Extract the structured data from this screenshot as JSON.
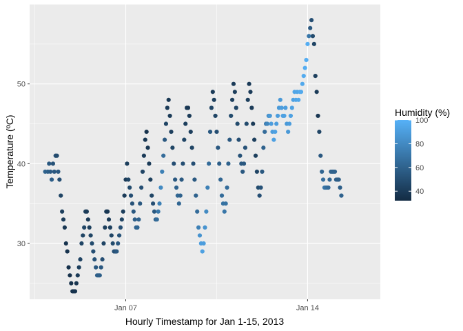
{
  "chart_data": {
    "type": "scatter",
    "title": "",
    "xlabel": "Hourly Timestamp for Jan 1-15, 2013",
    "ylabel": "Temperature (ºC)",
    "x_ticks": [
      {
        "day": 7,
        "label": "Jan 07"
      },
      {
        "day": 14,
        "label": "Jan 14"
      }
    ],
    "y_ticks": [
      30,
      40,
      50
    ],
    "xlim_days": [
      3.3,
      16.8
    ],
    "ylim": [
      23,
      60
    ],
    "grid": true,
    "legend": {
      "title": "Humidity (%)",
      "position": "right",
      "ticks": [
        40,
        60,
        80,
        100
      ],
      "range": [
        32,
        100
      ],
      "color_low": "#132B43",
      "color_high": "#56B1F7"
    },
    "colors": {
      "panel_bg": "#EBEBEB",
      "grid_major": "#FFFFFF"
    },
    "points_day_temp_humidity": [
      [
        3.9,
        39,
        60
      ],
      [
        4.0,
        39,
        58
      ],
      [
        4.05,
        40,
        55
      ],
      [
        4.1,
        39,
        56
      ],
      [
        4.15,
        38,
        58
      ],
      [
        4.2,
        40,
        52
      ],
      [
        4.25,
        39,
        55
      ],
      [
        4.3,
        41,
        50
      ],
      [
        4.35,
        41,
        48
      ],
      [
        4.4,
        39,
        55
      ],
      [
        4.45,
        38,
        50
      ],
      [
        4.5,
        36,
        45
      ],
      [
        4.55,
        34,
        42
      ],
      [
        4.6,
        33,
        40
      ],
      [
        4.65,
        32,
        38
      ],
      [
        4.7,
        30,
        36
      ],
      [
        4.75,
        29,
        36
      ],
      [
        4.8,
        27,
        35
      ],
      [
        4.85,
        26,
        35
      ],
      [
        4.9,
        25,
        35
      ],
      [
        4.95,
        24,
        35
      ],
      [
        5.0,
        24,
        36
      ],
      [
        5.05,
        24,
        36
      ],
      [
        5.1,
        25,
        37
      ],
      [
        5.15,
        26,
        40
      ],
      [
        5.2,
        27,
        42
      ],
      [
        5.25,
        28,
        44
      ],
      [
        5.3,
        30,
        45
      ],
      [
        5.35,
        31,
        45
      ],
      [
        5.4,
        32,
        45
      ],
      [
        5.45,
        34,
        42
      ],
      [
        5.5,
        34,
        40
      ],
      [
        5.55,
        33,
        40
      ],
      [
        5.6,
        32,
        42
      ],
      [
        5.65,
        31,
        45
      ],
      [
        5.7,
        30,
        48
      ],
      [
        5.75,
        29,
        50
      ],
      [
        5.8,
        28,
        52
      ],
      [
        5.85,
        27,
        55
      ],
      [
        5.9,
        26,
        58
      ],
      [
        5.95,
        26,
        58
      ],
      [
        6.0,
        26,
        58
      ],
      [
        6.05,
        27,
        55
      ],
      [
        6.1,
        28,
        50
      ],
      [
        6.15,
        30,
        45
      ],
      [
        6.2,
        32,
        42
      ],
      [
        6.25,
        34,
        40
      ],
      [
        6.3,
        34,
        38
      ],
      [
        6.35,
        33,
        40
      ],
      [
        6.4,
        32,
        42
      ],
      [
        6.45,
        31,
        45
      ],
      [
        6.5,
        30,
        48
      ],
      [
        6.55,
        29,
        50
      ],
      [
        6.6,
        29,
        52
      ],
      [
        6.65,
        29,
        55
      ],
      [
        6.7,
        30,
        55
      ],
      [
        6.75,
        31,
        52
      ],
      [
        6.8,
        32,
        50
      ],
      [
        6.85,
        33,
        45
      ],
      [
        6.9,
        34,
        42
      ],
      [
        6.95,
        36,
        40
      ],
      [
        7.0,
        38,
        40
      ],
      [
        7.05,
        40,
        42
      ],
      [
        7.1,
        38,
        45
      ],
      [
        7.15,
        37,
        48
      ],
      [
        7.2,
        36,
        50
      ],
      [
        7.25,
        35,
        52
      ],
      [
        7.3,
        34,
        55
      ],
      [
        7.35,
        33,
        58
      ],
      [
        7.4,
        32,
        60
      ],
      [
        7.45,
        32,
        62
      ],
      [
        7.5,
        33,
        60
      ],
      [
        7.55,
        35,
        55
      ],
      [
        7.6,
        37,
        50
      ],
      [
        7.65,
        39,
        45
      ],
      [
        7.7,
        41,
        40
      ],
      [
        7.75,
        43,
        38
      ],
      [
        7.8,
        44,
        36
      ],
      [
        7.85,
        42,
        38
      ],
      [
        7.9,
        40,
        40
      ],
      [
        7.95,
        38,
        42
      ],
      [
        8.0,
        36,
        45
      ],
      [
        8.05,
        35,
        50
      ],
      [
        8.1,
        34,
        55
      ],
      [
        8.15,
        33,
        60
      ],
      [
        8.2,
        33,
        65
      ],
      [
        8.25,
        34,
        70
      ],
      [
        8.3,
        35,
        75
      ],
      [
        8.35,
        37,
        80
      ],
      [
        8.4,
        39,
        75
      ],
      [
        8.45,
        41,
        65
      ],
      [
        8.5,
        43,
        55
      ],
      [
        8.55,
        45,
        45
      ],
      [
        8.6,
        47,
        40
      ],
      [
        8.65,
        48,
        38
      ],
      [
        8.7,
        46,
        40
      ],
      [
        8.75,
        44,
        42
      ],
      [
        8.8,
        42,
        45
      ],
      [
        8.85,
        40,
        50
      ],
      [
        8.9,
        38,
        55
      ],
      [
        8.95,
        37,
        60
      ],
      [
        9.0,
        36,
        62
      ],
      [
        9.05,
        35,
        62
      ],
      [
        9.1,
        36,
        60
      ],
      [
        9.15,
        38,
        55
      ],
      [
        9.2,
        40,
        50
      ],
      [
        9.25,
        43,
        45
      ],
      [
        9.3,
        45,
        42
      ],
      [
        9.35,
        47,
        40
      ],
      [
        9.4,
        47,
        38
      ],
      [
        9.45,
        46,
        40
      ],
      [
        9.5,
        44,
        42
      ],
      [
        9.55,
        42,
        45
      ],
      [
        9.6,
        40,
        50
      ],
      [
        9.65,
        38,
        55
      ],
      [
        9.7,
        36,
        60
      ],
      [
        9.75,
        34,
        65
      ],
      [
        9.8,
        32,
        75
      ],
      [
        9.85,
        31,
        85
      ],
      [
        9.9,
        30,
        90
      ],
      [
        9.95,
        29,
        92
      ],
      [
        10.0,
        30,
        90
      ],
      [
        10.05,
        32,
        85
      ],
      [
        10.1,
        34,
        80
      ],
      [
        10.15,
        37,
        75
      ],
      [
        10.2,
        40,
        65
      ],
      [
        10.25,
        44,
        55
      ],
      [
        10.3,
        47,
        45
      ],
      [
        10.35,
        49,
        40
      ],
      [
        10.4,
        48,
        42
      ],
      [
        10.45,
        46,
        45
      ],
      [
        10.5,
        44,
        50
      ],
      [
        10.55,
        42,
        55
      ],
      [
        10.6,
        40,
        58
      ],
      [
        10.65,
        38,
        62
      ],
      [
        10.7,
        36,
        65
      ],
      [
        10.75,
        35,
        68
      ],
      [
        10.8,
        34,
        70
      ],
      [
        10.85,
        35,
        68
      ],
      [
        10.9,
        37,
        65
      ],
      [
        10.95,
        40,
        60
      ],
      [
        11.0,
        43,
        55
      ],
      [
        11.05,
        46,
        48
      ],
      [
        11.1,
        48,
        42
      ],
      [
        11.15,
        50,
        40
      ],
      [
        11.2,
        49,
        42
      ],
      [
        11.25,
        47,
        45
      ],
      [
        11.3,
        45,
        48
      ],
      [
        11.35,
        43,
        50
      ],
      [
        11.4,
        41,
        52
      ],
      [
        11.45,
        40,
        55
      ],
      [
        11.5,
        39,
        55
      ],
      [
        11.55,
        40,
        55
      ],
      [
        11.6,
        42,
        52
      ],
      [
        11.65,
        45,
        48
      ],
      [
        11.7,
        48,
        42
      ],
      [
        11.75,
        50,
        40
      ],
      [
        11.8,
        49,
        40
      ],
      [
        11.85,
        47,
        40
      ],
      [
        11.9,
        45,
        40
      ],
      [
        11.95,
        43,
        42
      ],
      [
        12.0,
        41,
        42
      ],
      [
        12.05,
        39,
        45
      ],
      [
        12.1,
        37,
        48
      ],
      [
        12.15,
        36,
        50
      ],
      [
        12.2,
        37,
        52
      ],
      [
        12.25,
        39,
        55
      ],
      [
        12.3,
        42,
        60
      ],
      [
        12.35,
        44,
        65
      ],
      [
        12.4,
        45,
        72
      ],
      [
        12.45,
        45,
        78
      ],
      [
        12.5,
        46,
        82
      ],
      [
        12.55,
        46,
        88
      ],
      [
        12.6,
        45,
        90
      ],
      [
        12.65,
        44,
        90
      ],
      [
        12.7,
        43,
        92
      ],
      [
        12.75,
        44,
        92
      ],
      [
        12.8,
        45,
        90
      ],
      [
        12.85,
        46,
        90
      ],
      [
        12.9,
        47,
        88
      ],
      [
        12.95,
        48,
        88
      ],
      [
        13.0,
        47,
        90
      ],
      [
        13.05,
        46,
        92
      ],
      [
        13.1,
        46,
        92
      ],
      [
        13.15,
        47,
        90
      ],
      [
        13.2,
        45,
        88
      ],
      [
        13.25,
        44,
        88
      ],
      [
        13.3,
        45,
        90
      ],
      [
        13.35,
        46,
        92
      ],
      [
        13.4,
        47,
        92
      ],
      [
        13.45,
        48,
        92
      ],
      [
        13.5,
        49,
        94
      ],
      [
        13.55,
        48,
        94
      ],
      [
        13.6,
        49,
        94
      ],
      [
        13.65,
        48,
        95
      ],
      [
        13.7,
        49,
        96
      ],
      [
        13.75,
        49,
        96
      ],
      [
        13.8,
        50,
        96
      ],
      [
        13.85,
        51,
        97
      ],
      [
        13.9,
        52,
        98
      ],
      [
        13.95,
        53,
        98
      ],
      [
        14.0,
        55,
        98
      ],
      [
        14.05,
        56,
        70
      ],
      [
        14.1,
        57,
        55
      ],
      [
        14.15,
        58,
        50
      ],
      [
        14.2,
        56,
        48
      ],
      [
        14.25,
        55,
        45
      ],
      [
        14.3,
        51,
        42
      ],
      [
        14.35,
        49,
        40
      ],
      [
        14.4,
        46,
        38
      ],
      [
        14.45,
        44,
        45
      ],
      [
        14.5,
        41,
        55
      ],
      [
        14.55,
        39,
        62
      ],
      [
        14.6,
        38,
        66
      ],
      [
        14.65,
        37,
        70
      ],
      [
        14.7,
        37,
        68
      ],
      [
        14.75,
        37,
        66
      ],
      [
        14.8,
        37,
        64
      ],
      [
        14.85,
        38,
        62
      ],
      [
        14.9,
        39,
        60
      ],
      [
        14.95,
        39,
        60
      ],
      [
        15.0,
        39,
        60
      ],
      [
        15.05,
        39,
        60
      ],
      [
        15.1,
        38,
        58
      ],
      [
        15.15,
        38,
        58
      ],
      [
        15.2,
        38,
        58
      ],
      [
        15.25,
        37,
        58
      ],
      [
        15.3,
        36,
        60
      ]
    ]
  }
}
